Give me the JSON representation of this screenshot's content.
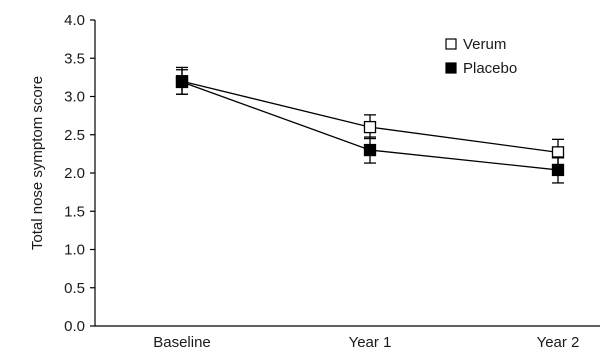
{
  "chart_data": {
    "type": "line",
    "title": "",
    "xlabel": "",
    "ylabel": "Total nose symptom score",
    "categories": [
      "Baseline",
      "Year 1",
      "Year 2"
    ],
    "ylim": [
      0.0,
      4.0
    ],
    "yticks": [
      "0.0",
      "0.5",
      "1.0",
      "1.5",
      "2.0",
      "2.5",
      "3.0",
      "3.5",
      "4.0"
    ],
    "grid": false,
    "legend": "top-right",
    "series": [
      {
        "name": "Verum",
        "marker": "open-square",
        "color": "#000000",
        "values": [
          3.2,
          2.6,
          2.27
        ],
        "error_low": [
          3.03,
          2.45,
          2.1
        ],
        "error_high": [
          3.38,
          2.76,
          2.44
        ]
      },
      {
        "name": "Placebo",
        "marker": "filled-square",
        "color": "#000000",
        "values": [
          3.19,
          2.3,
          2.04
        ],
        "error_low": [
          3.03,
          2.13,
          1.87
        ],
        "error_high": [
          3.35,
          2.47,
          2.21
        ]
      }
    ]
  }
}
